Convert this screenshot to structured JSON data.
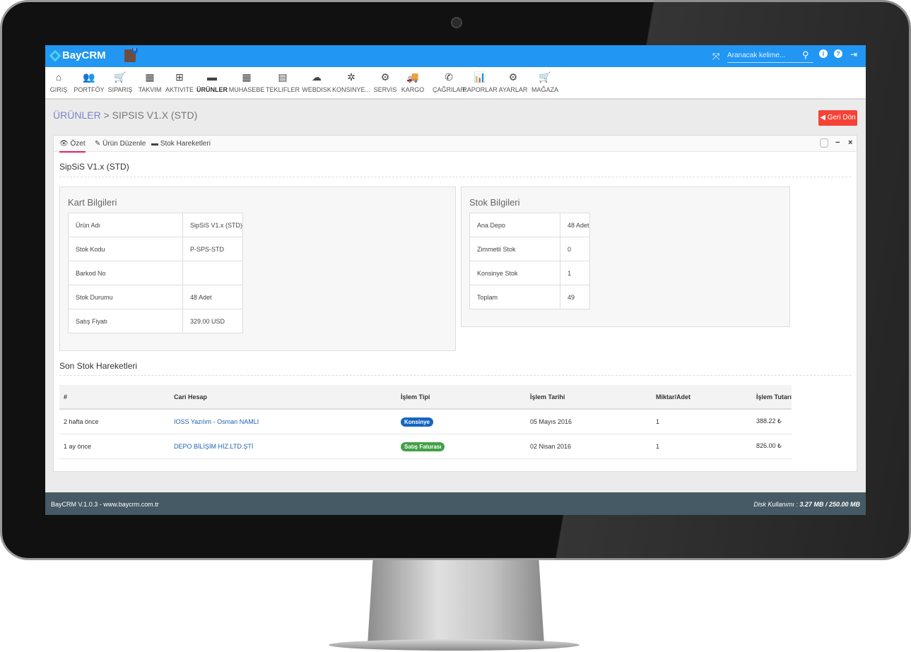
{
  "header": {
    "app_name": "BayCRM",
    "notification_count": "0",
    "search_placeholder": "Aranacak kelime..."
  },
  "nav": [
    {
      "label": "GIRIŞ",
      "icon": "home-icon",
      "glyph": "⌂"
    },
    {
      "label": "PORTFÖY",
      "icon": "users-icon",
      "glyph": "👥"
    },
    {
      "label": "SIPARIŞ",
      "icon": "cart-icon",
      "glyph": "🛒"
    },
    {
      "label": "TAKVIM",
      "icon": "calendar-icon",
      "glyph": "▦"
    },
    {
      "label": "AKTIVITE",
      "icon": "calendar-plus-icon",
      "glyph": "⊞"
    },
    {
      "label": "ÜRÜNLER",
      "icon": "archive-icon",
      "glyph": "▬"
    },
    {
      "label": "MUHASEBE",
      "icon": "calculator-icon",
      "glyph": "▦"
    },
    {
      "label": "TEKLIFLER",
      "icon": "list-alt-icon",
      "glyph": "▤"
    },
    {
      "label": "WEBDISK",
      "icon": "cloud-icon",
      "glyph": "☁"
    },
    {
      "label": "KONSINYE...",
      "icon": "gear-icon",
      "glyph": "✲"
    },
    {
      "label": "SERVIS",
      "icon": "gears-icon",
      "glyph": "⚙"
    },
    {
      "label": "KARGO",
      "icon": "truck-icon",
      "glyph": "🚚"
    },
    {
      "label": "ÇAĞRILAR",
      "icon": "phone-icon",
      "glyph": "✆"
    },
    {
      "label": "RAPORLAR",
      "icon": "bar-chart-icon",
      "glyph": "📊"
    },
    {
      "label": "AYARLAR",
      "icon": "cog-icon",
      "glyph": "⚙"
    },
    {
      "label": "MAĞAZA",
      "icon": "cart-plus-icon",
      "glyph": "🛒"
    }
  ],
  "breadcrumb": {
    "root": "ÜRÜNLER",
    "separator": ">",
    "current": "SIPSIS V1.X (STD)"
  },
  "back_button": "Geri Dön",
  "tabs": [
    "Özet",
    "Ürün Düzenle",
    "Stok Hareketleri"
  ],
  "product_title": "SipSiS V1.x (STD)",
  "card_info": {
    "title": "Kart Bilgileri",
    "rows": [
      [
        "Ürün Adı",
        "SipSiS V1.x (STD)"
      ],
      [
        "Stok Kodu",
        "P-SPS-STD"
      ],
      [
        "Barkod No",
        ""
      ],
      [
        "Stok Durumu",
        "48 Adet"
      ],
      [
        "Satış Fiyatı",
        "329.00 USD"
      ]
    ]
  },
  "stock_info": {
    "title": "Stok Bilgileri",
    "rows": [
      [
        "Ana Depo",
        "48 Adet"
      ],
      [
        "Zimmetli Stok",
        "0"
      ],
      [
        "Konsinye Stok",
        "1"
      ],
      [
        "Toplam",
        "49"
      ]
    ]
  },
  "movements": {
    "title": "Son Stok Hareketleri",
    "columns": [
      "#",
      "Cari Hesap",
      "İşlem Tipi",
      "İşlem Tarihi",
      "Miktar/Adet",
      "İşlem Tutarı"
    ],
    "rows": [
      {
        "when": "2 hafta önce",
        "account": "IOSS Yazılım - Osman NAMLI",
        "type": "Konsinye",
        "type_color": "#1565c0",
        "date": "05 Mayıs 2016",
        "qty": "1",
        "amount": "388.22 ₺"
      },
      {
        "when": "1 ay önce",
        "account": "DEPO BİLİŞİM HİZ.LTD.ŞTİ",
        "type": "Satış Faturası",
        "type_color": "#43a047",
        "date": "02 Nisan 2016",
        "qty": "1",
        "amount": "826.00 ₺"
      }
    ]
  },
  "footer": {
    "left": "BayCRM V.1.0.3 - www.baycrm.com.tr",
    "disk_label": "Disk Kullanımı :",
    "disk_used": "3.27 MB",
    "disk_sep": "/",
    "disk_total": "250.00 MB"
  },
  "colors": {
    "header": "#2196f3",
    "footer": "#455a64",
    "back_button": "#f44336",
    "tab_active": "#e91e63"
  }
}
